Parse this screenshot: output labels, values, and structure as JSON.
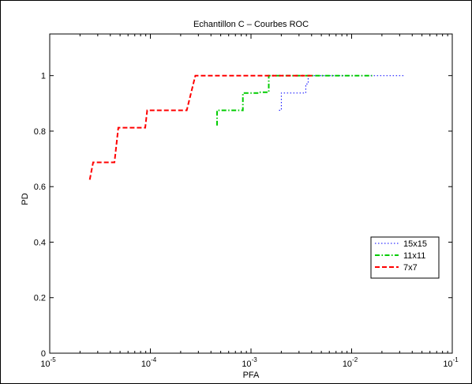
{
  "chart_data": {
    "type": "line",
    "title": "Echantillon C – Courbes ROC",
    "xlabel": "PFA",
    "ylabel": "PD",
    "xscale": "log",
    "xlim": [
      1e-05,
      0.1
    ],
    "ylim": [
      0,
      1.15
    ],
    "x_ticks": [
      {
        "value": 1e-05,
        "base": "10",
        "exp": "-5"
      },
      {
        "value": 0.0001,
        "base": "10",
        "exp": "-4"
      },
      {
        "value": 0.001,
        "base": "10",
        "exp": "-3"
      },
      {
        "value": 0.01,
        "base": "10",
        "exp": "-2"
      },
      {
        "value": 0.1,
        "base": "10",
        "exp": "-1"
      }
    ],
    "y_ticks": [
      {
        "value": 0,
        "label": "0"
      },
      {
        "value": 0.2,
        "label": "0.2"
      },
      {
        "value": 0.4,
        "label": "0.4"
      },
      {
        "value": 0.6,
        "label": "0.6"
      },
      {
        "value": 0.8,
        "label": "0.8"
      },
      {
        "value": 1,
        "label": "1"
      }
    ],
    "grid": false,
    "legend_position": "right",
    "series": [
      {
        "name": "15x15",
        "color": "#0000ff",
        "style": "dotted",
        "points": [
          [
            0.0019,
            0.875
          ],
          [
            0.002,
            0.875
          ],
          [
            0.002,
            0.9375
          ],
          [
            0.0035,
            0.9375
          ],
          [
            0.0035,
            0.97
          ],
          [
            0.0037,
            0.97
          ],
          [
            0.0037,
            1.0
          ],
          [
            0.033,
            1.0
          ]
        ]
      },
      {
        "name": "11x11",
        "color": "#00cc00",
        "style": "dashdot",
        "points": [
          [
            0.00046,
            0.82
          ],
          [
            0.00046,
            0.875
          ],
          [
            0.00083,
            0.875
          ],
          [
            0.00083,
            0.9375
          ],
          [
            0.0012,
            0.9375
          ],
          [
            0.0012,
            0.94
          ],
          [
            0.0015,
            0.94
          ],
          [
            0.0015,
            1.0
          ],
          [
            0.016,
            1.0
          ]
        ]
      },
      {
        "name": "7x7",
        "color": "#ff0000",
        "style": "dashed",
        "points": [
          [
            2.5e-05,
            0.625
          ],
          [
            2.7e-05,
            0.6875
          ],
          [
            4.4e-05,
            0.6875
          ],
          [
            4.8e-05,
            0.8125
          ],
          [
            8.9e-05,
            0.8125
          ],
          [
            9.3e-05,
            0.875
          ],
          [
            0.00023,
            0.875
          ],
          [
            0.00028,
            1.0
          ],
          [
            0.0042,
            1.0
          ]
        ]
      }
    ]
  }
}
